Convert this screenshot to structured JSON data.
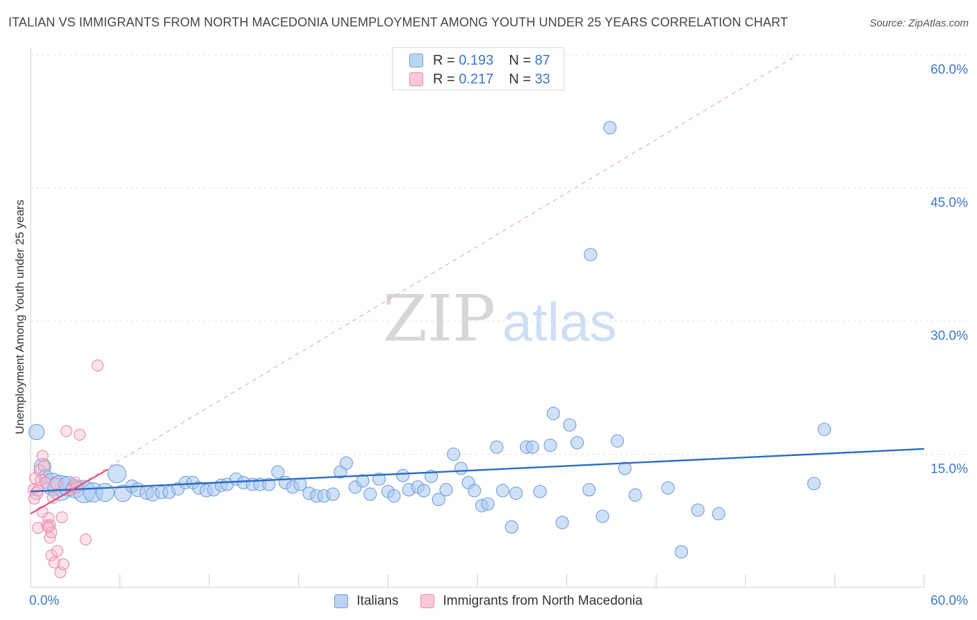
{
  "header": {
    "title": "ITALIAN VS IMMIGRANTS FROM NORTH MACEDONIA UNEMPLOYMENT AMONG YOUTH UNDER 25 YEARS CORRELATION CHART",
    "source": "Source: ZipAtlas.com"
  },
  "watermark": {
    "zip": "ZIP",
    "atlas": "atlas"
  },
  "legend_top": {
    "r_label": "R =",
    "n_label": "N =",
    "rows": [
      {
        "r": "0.193",
        "n": "87"
      },
      {
        "r": "0.217",
        "n": "33"
      }
    ]
  },
  "colors": {
    "blue_fill": "#a9c8f0",
    "blue_stroke": "#6d9ed8",
    "blue_line": "#2b6cc4",
    "pink_fill": "#f7b9cc",
    "pink_stroke": "#e98aa8",
    "pink_line": "#e0507a",
    "axis_label": "#3a78c9",
    "grid": "#e3e3e3"
  },
  "chart_data": {
    "type": "scatter",
    "title": "ITALIAN VS IMMIGRANTS FROM NORTH MACEDONIA UNEMPLOYMENT AMONG YOUTH UNDER 25 YEARS CORRELATION CHART",
    "xlabel": "",
    "ylabel": "Unemployment Among Youth under 25 years",
    "xlim": [
      0,
      60
    ],
    "ylim": [
      0,
      60
    ],
    "x_tick_labels": [
      "0.0%",
      "60.0%"
    ],
    "y_ticks": [
      15,
      30,
      45,
      60
    ],
    "y_tick_labels": [
      "15.0%",
      "30.0%",
      "45.0%",
      "60.0%"
    ],
    "grid": true,
    "legend_position": "top-center",
    "series": [
      {
        "name": "Italians",
        "r": 0.193,
        "n": 87,
        "trend": {
          "x": [
            0,
            60
          ],
          "y": [
            10.8,
            15.6
          ]
        },
        "points": [
          {
            "x": 0.4,
            "y": 17.5,
            "s": 11
          },
          {
            "x": 0.8,
            "y": 13.6,
            "s": 12
          },
          {
            "x": 1.0,
            "y": 12.5,
            "s": 10
          },
          {
            "x": 1.5,
            "y": 11.6,
            "s": 16
          },
          {
            "x": 2.0,
            "y": 11.2,
            "s": 18
          },
          {
            "x": 2.5,
            "y": 11.4,
            "s": 14
          },
          {
            "x": 3.0,
            "y": 11.1,
            "s": 13
          },
          {
            "x": 3.6,
            "y": 10.8,
            "s": 16
          },
          {
            "x": 4.2,
            "y": 10.7,
            "s": 14
          },
          {
            "x": 5.0,
            "y": 10.7,
            "s": 13
          },
          {
            "x": 5.8,
            "y": 12.8,
            "s": 13
          },
          {
            "x": 6.2,
            "y": 10.6,
            "s": 12
          },
          {
            "x": 6.8,
            "y": 11.4,
            "s": 9
          },
          {
            "x": 7.2,
            "y": 11.0,
            "s": 10
          },
          {
            "x": 7.8,
            "y": 10.7,
            "s": 10
          },
          {
            "x": 8.2,
            "y": 10.5,
            "s": 10
          },
          {
            "x": 8.8,
            "y": 10.7,
            "s": 9
          },
          {
            "x": 9.3,
            "y": 10.7,
            "s": 9
          },
          {
            "x": 9.9,
            "y": 11.1,
            "s": 9
          },
          {
            "x": 10.4,
            "y": 11.8,
            "s": 9
          },
          {
            "x": 10.9,
            "y": 11.8,
            "s": 9
          },
          {
            "x": 11.3,
            "y": 11.2,
            "s": 9
          },
          {
            "x": 11.8,
            "y": 10.9,
            "s": 9
          },
          {
            "x": 12.3,
            "y": 11.0,
            "s": 9
          },
          {
            "x": 12.8,
            "y": 11.5,
            "s": 9
          },
          {
            "x": 13.2,
            "y": 11.6,
            "s": 9
          },
          {
            "x": 13.8,
            "y": 12.2,
            "s": 9
          },
          {
            "x": 14.3,
            "y": 11.8,
            "s": 9
          },
          {
            "x": 14.9,
            "y": 11.6,
            "s": 9
          },
          {
            "x": 15.4,
            "y": 11.6,
            "s": 9
          },
          {
            "x": 16.0,
            "y": 11.6,
            "s": 9
          },
          {
            "x": 16.6,
            "y": 13.0,
            "s": 9
          },
          {
            "x": 17.1,
            "y": 11.8,
            "s": 9
          },
          {
            "x": 17.6,
            "y": 11.3,
            "s": 9
          },
          {
            "x": 18.1,
            "y": 11.6,
            "s": 9
          },
          {
            "x": 18.7,
            "y": 10.6,
            "s": 9
          },
          {
            "x": 19.2,
            "y": 10.3,
            "s": 9
          },
          {
            "x": 19.7,
            "y": 10.3,
            "s": 9
          },
          {
            "x": 20.3,
            "y": 10.5,
            "s": 9
          },
          {
            "x": 20.8,
            "y": 13.0,
            "s": 9
          },
          {
            "x": 21.2,
            "y": 14.0,
            "s": 9
          },
          {
            "x": 21.8,
            "y": 11.3,
            "s": 9
          },
          {
            "x": 22.3,
            "y": 12.0,
            "s": 9
          },
          {
            "x": 22.8,
            "y": 10.5,
            "s": 9
          },
          {
            "x": 23.4,
            "y": 12.2,
            "s": 9
          },
          {
            "x": 24.0,
            "y": 10.8,
            "s": 9
          },
          {
            "x": 24.4,
            "y": 10.3,
            "s": 9
          },
          {
            "x": 25.0,
            "y": 12.6,
            "s": 9
          },
          {
            "x": 25.4,
            "y": 11.0,
            "s": 9
          },
          {
            "x": 26.0,
            "y": 11.3,
            "s": 9
          },
          {
            "x": 26.4,
            "y": 10.9,
            "s": 9
          },
          {
            "x": 26.9,
            "y": 12.5,
            "s": 9
          },
          {
            "x": 27.4,
            "y": 9.9,
            "s": 9
          },
          {
            "x": 27.9,
            "y": 11.0,
            "s": 9
          },
          {
            "x": 28.4,
            "y": 15.0,
            "s": 9
          },
          {
            "x": 28.9,
            "y": 13.4,
            "s": 9
          },
          {
            "x": 29.4,
            "y": 11.8,
            "s": 9
          },
          {
            "x": 29.8,
            "y": 10.9,
            "s": 9
          },
          {
            "x": 30.3,
            "y": 9.2,
            "s": 9
          },
          {
            "x": 30.7,
            "y": 9.4,
            "s": 9
          },
          {
            "x": 31.3,
            "y": 15.8,
            "s": 9
          },
          {
            "x": 31.7,
            "y": 10.9,
            "s": 9
          },
          {
            "x": 32.3,
            "y": 6.8,
            "s": 9
          },
          {
            "x": 32.6,
            "y": 10.6,
            "s": 9
          },
          {
            "x": 33.3,
            "y": 15.8,
            "s": 9
          },
          {
            "x": 33.7,
            "y": 15.8,
            "s": 9
          },
          {
            "x": 34.2,
            "y": 10.8,
            "s": 9
          },
          {
            "x": 34.9,
            "y": 16.0,
            "s": 9
          },
          {
            "x": 35.1,
            "y": 19.6,
            "s": 9
          },
          {
            "x": 35.7,
            "y": 7.3,
            "s": 9
          },
          {
            "x": 36.2,
            "y": 18.3,
            "s": 9
          },
          {
            "x": 36.7,
            "y": 16.3,
            "s": 9
          },
          {
            "x": 37.5,
            "y": 11.0,
            "s": 9
          },
          {
            "x": 38.4,
            "y": 8.0,
            "s": 9
          },
          {
            "x": 37.6,
            "y": 37.5,
            "s": 9
          },
          {
            "x": 38.9,
            "y": 51.8,
            "s": 9
          },
          {
            "x": 39.4,
            "y": 16.5,
            "s": 9
          },
          {
            "x": 39.9,
            "y": 13.4,
            "s": 9
          },
          {
            "x": 40.6,
            "y": 10.4,
            "s": 9
          },
          {
            "x": 42.8,
            "y": 11.2,
            "s": 9
          },
          {
            "x": 43.7,
            "y": 4.0,
            "s": 9
          },
          {
            "x": 44.8,
            "y": 8.7,
            "s": 9
          },
          {
            "x": 46.2,
            "y": 8.3,
            "s": 9
          },
          {
            "x": 52.6,
            "y": 11.7,
            "s": 9
          },
          {
            "x": 53.3,
            "y": 17.8,
            "s": 9
          }
        ]
      },
      {
        "name": "Immigrants from North Macedonia",
        "r": 0.217,
        "n": 33,
        "trend": {
          "x": [
            0,
            5.2
          ],
          "y": [
            8.3,
            13.3
          ]
        },
        "trend_extended": {
          "x": [
            0,
            51.5
          ],
          "y": [
            8.3,
            60.0
          ]
        },
        "points": [
          {
            "x": 0.2,
            "y": 11.0,
            "s": 8
          },
          {
            "x": 0.25,
            "y": 10.0,
            "s": 8
          },
          {
            "x": 0.3,
            "y": 12.3,
            "s": 8
          },
          {
            "x": 0.4,
            "y": 10.6,
            "s": 9
          },
          {
            "x": 0.5,
            "y": 10.9,
            "s": 8
          },
          {
            "x": 0.6,
            "y": 13.2,
            "s": 8
          },
          {
            "x": 0.7,
            "y": 12.1,
            "s": 8
          },
          {
            "x": 0.8,
            "y": 14.8,
            "s": 8
          },
          {
            "x": 0.9,
            "y": 13.7,
            "s": 8
          },
          {
            "x": 0.5,
            "y": 6.7,
            "s": 8
          },
          {
            "x": 0.8,
            "y": 8.5,
            "s": 8
          },
          {
            "x": 1.0,
            "y": 11.8,
            "s": 8
          },
          {
            "x": 1.1,
            "y": 7.0,
            "s": 8
          },
          {
            "x": 1.2,
            "y": 7.8,
            "s": 8
          },
          {
            "x": 1.3,
            "y": 7.0,
            "s": 8
          },
          {
            "x": 1.3,
            "y": 5.6,
            "s": 8
          },
          {
            "x": 1.4,
            "y": 6.2,
            "s": 8
          },
          {
            "x": 1.4,
            "y": 3.6,
            "s": 8
          },
          {
            "x": 1.5,
            "y": 10.1,
            "s": 8
          },
          {
            "x": 1.6,
            "y": 2.8,
            "s": 8
          },
          {
            "x": 1.7,
            "y": 11.7,
            "s": 8
          },
          {
            "x": 1.8,
            "y": 4.1,
            "s": 8
          },
          {
            "x": 2.0,
            "y": 1.7,
            "s": 8
          },
          {
            "x": 2.1,
            "y": 7.9,
            "s": 8
          },
          {
            "x": 2.2,
            "y": 2.6,
            "s": 8
          },
          {
            "x": 2.4,
            "y": 17.6,
            "s": 8
          },
          {
            "x": 2.7,
            "y": 11.0,
            "s": 8
          },
          {
            "x": 3.0,
            "y": 11.8,
            "s": 8
          },
          {
            "x": 3.1,
            "y": 11.3,
            "s": 8
          },
          {
            "x": 3.3,
            "y": 17.2,
            "s": 8
          },
          {
            "x": 3.7,
            "y": 5.4,
            "s": 8
          },
          {
            "x": 4.5,
            "y": 25.0,
            "s": 8
          },
          {
            "x": 1.2,
            "y": 6.8,
            "s": 8
          }
        ]
      }
    ]
  }
}
